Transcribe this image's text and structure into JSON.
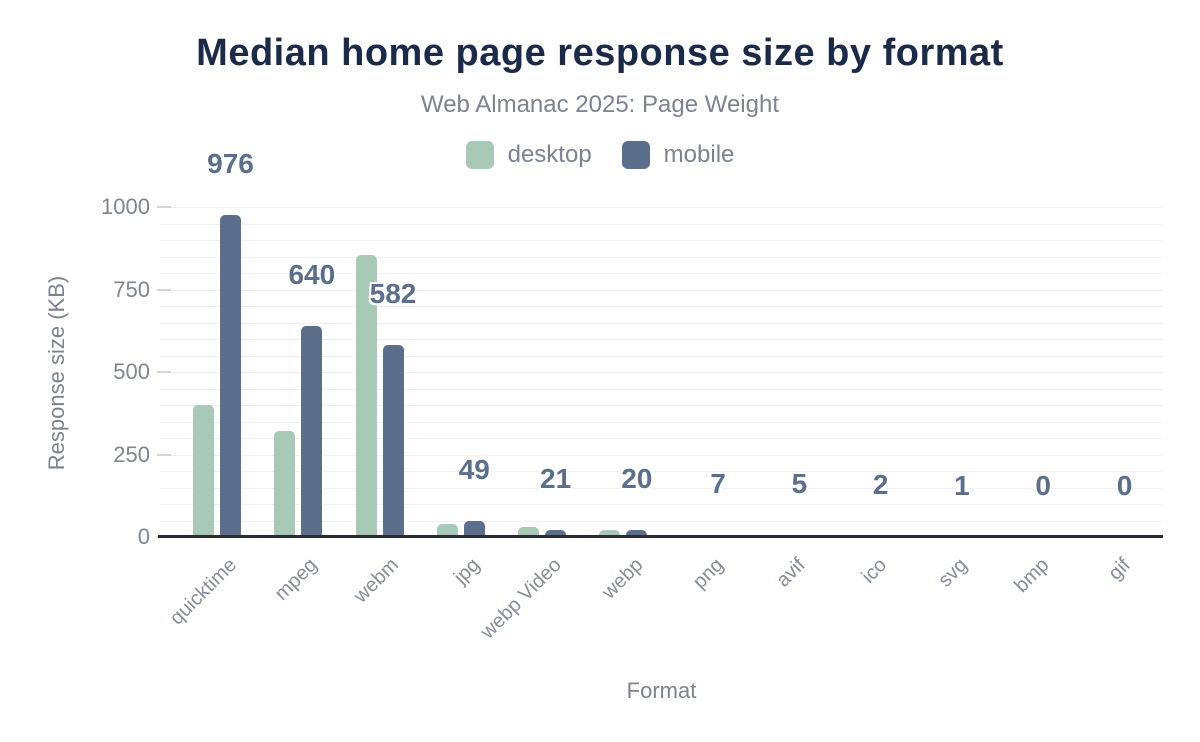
{
  "chart_data": {
    "type": "bar",
    "title": "Median home page response size by format",
    "subtitle": "Web Almanac 2025: Page Weight",
    "xlabel": "Format",
    "ylabel": "Response size (KB)",
    "ylim": [
      0,
      1000
    ],
    "y_ticks": [
      0,
      250,
      500,
      750,
      1000
    ],
    "grid": true,
    "grid_step": 50,
    "legend_position": "top-center",
    "categories": [
      "quicktime",
      "mpeg",
      "webm",
      "jpg",
      "webp Video",
      "webp",
      "png",
      "avif",
      "ico",
      "svg",
      "bmp",
      "gif"
    ],
    "series": [
      {
        "name": "desktop",
        "color": "#a8c9b5",
        "values": [
          400,
          320,
          855,
          41,
          30,
          22,
          6,
          5,
          2,
          1,
          0,
          0
        ]
      },
      {
        "name": "mobile",
        "color": "#5b6e8c",
        "values": [
          976,
          640,
          582,
          49,
          21,
          20,
          7,
          5,
          2,
          1,
          0,
          0
        ]
      }
    ],
    "data_labels": {
      "from_series": "mobile",
      "values": [
        976,
        640,
        582,
        49,
        21,
        20,
        7,
        5,
        2,
        1,
        0,
        0
      ]
    }
  },
  "colors": {
    "background": "#ffffff",
    "title_text": "#1b2a49",
    "muted_text": "#7b8391",
    "tick_text": "#7d8591",
    "xtick_text": "#858d99",
    "gridline": "#f0f0f2",
    "tick_mark": "#d4d6da",
    "axis_line": "#2b2b33",
    "desktop_bar": "#a8c9b5",
    "mobile_bar": "#5b6e8c",
    "data_label_text": "#5b6e8c",
    "data_label_halo": "#ffffff"
  }
}
